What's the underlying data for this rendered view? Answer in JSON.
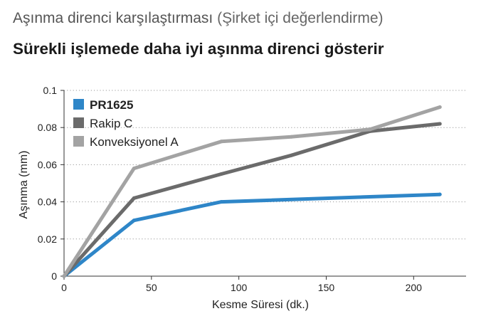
{
  "header": {
    "subtitle_main": "Aşınma direnci karşılaştırması",
    "subtitle_paren": "(Şirket içi değerlendirme)",
    "title": "Sürekli işlemede daha iyi aşınma direnci gösterir"
  },
  "chart_data": {
    "type": "line",
    "title": "Sürekli işlemede daha iyi aşınma direnci gösterir",
    "subtitle": "Aşınma direnci karşılaştırması (Şirket içi değerlendirme)",
    "xlabel": "Kesme Süresi (dk.)",
    "ylabel": "Aşınma (mm)",
    "xlim": [
      0,
      230
    ],
    "ylim": [
      0,
      0.1
    ],
    "xticks": [
      0,
      50,
      100,
      150,
      200
    ],
    "xtick_labels": [
      "0",
      "50",
      "100",
      "150",
      "200"
    ],
    "yticks": [
      0,
      0.02,
      0.04,
      0.06,
      0.08,
      0.1
    ],
    "ytick_labels": [
      "0",
      "0.02",
      "0.04",
      "0.06",
      "0.08",
      "0.1"
    ],
    "grid": "horizontal dotted",
    "legend_position": "top-left",
    "series": [
      {
        "name": "PR1625",
        "color": "#2e86c8",
        "bold": true,
        "points": [
          [
            0,
            0
          ],
          [
            40,
            0.03
          ],
          [
            90,
            0.04
          ],
          [
            215,
            0.044
          ]
        ]
      },
      {
        "name": "Rakip C",
        "color": "#6b6b6b",
        "bold": false,
        "points": [
          [
            0,
            0
          ],
          [
            40,
            0.042
          ],
          [
            90,
            0.055
          ],
          [
            130,
            0.065
          ],
          [
            175,
            0.078
          ],
          [
            215,
            0.082
          ]
        ]
      },
      {
        "name": "Konveksiyonel A",
        "color": "#a3a3a3",
        "bold": false,
        "points": [
          [
            0,
            0
          ],
          [
            40,
            0.058
          ],
          [
            90,
            0.0725
          ],
          [
            130,
            0.075
          ],
          [
            175,
            0.079
          ],
          [
            215,
            0.091
          ]
        ]
      }
    ]
  }
}
